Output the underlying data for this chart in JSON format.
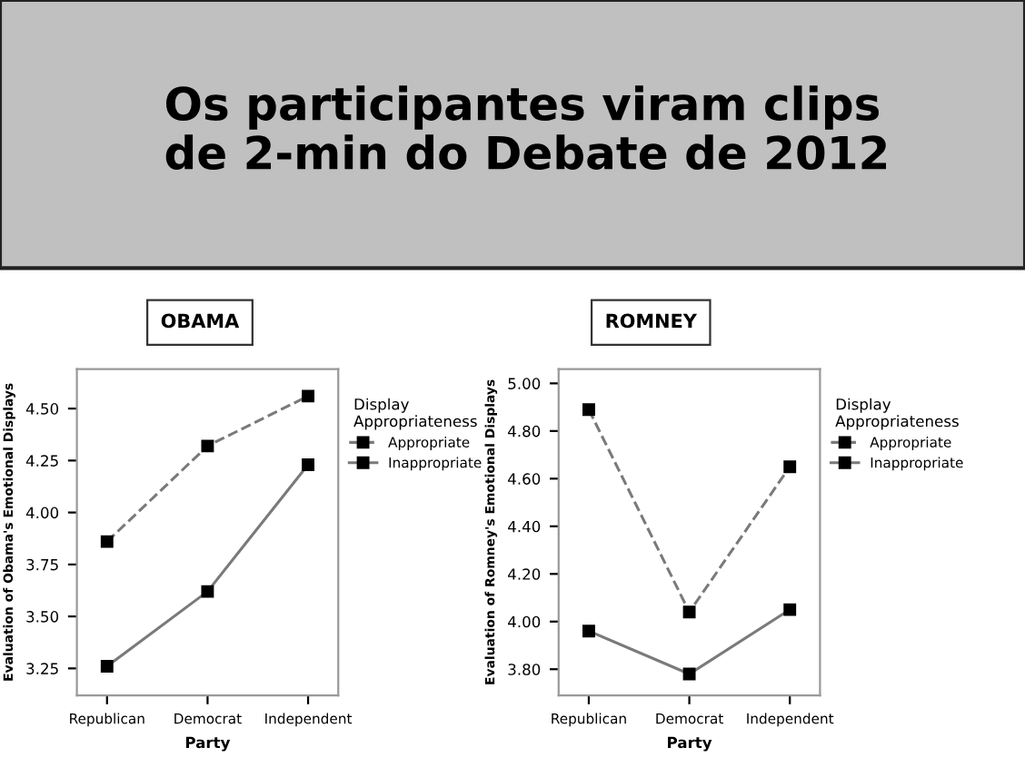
{
  "chart_data": [
    {
      "type": "line",
      "title": "OBAMA",
      "annotations": [
        "Os participantes viram clips\nde 2-min do Debate de 2012"
      ],
      "xlabel": "Party",
      "ylabel": "Evaluation of Obama's Emotional Displays",
      "legend_title": "Display\nAppropriateness",
      "categories": [
        "Republican",
        "Democrat",
        "Independent"
      ],
      "series": [
        {
          "name": "Appropriate",
          "color": "#7a7a7a",
          "line_style": "dashed",
          "values": [
            3.86,
            4.32,
            4.56
          ]
        },
        {
          "name": "Inappropriate",
          "color": "#7a7a7a",
          "line_style": "solid",
          "values": [
            3.26,
            3.62,
            4.23
          ]
        }
      ],
      "ylim": [
        3.12,
        4.69
      ],
      "yticks": [
        {
          "value": 3.25,
          "label": "3.25"
        },
        {
          "value": 3.5,
          "label": "3.50"
        },
        {
          "value": 3.75,
          "label": "3.75"
        },
        {
          "value": 4.0,
          "label": "4.00"
        },
        {
          "value": 4.25,
          "label": "4.25"
        },
        {
          "value": 4.5,
          "label": "4.50"
        }
      ],
      "marker": "square",
      "legend": "right",
      "grid": false
    },
    {
      "type": "line",
      "title": "ROMNEY",
      "xlabel": "Party",
      "ylabel": "Evaluation of Romney's Emotional Displays",
      "legend_title": "Display\nAppropriateness",
      "categories": [
        "Republican",
        "Democrat",
        "Independent"
      ],
      "series": [
        {
          "name": "Appropriate",
          "color": "#7a7a7a",
          "line_style": "dashed",
          "values": [
            4.89,
            4.04,
            4.65
          ]
        },
        {
          "name": "Inappropriate",
          "color": "#7a7a7a",
          "line_style": "solid",
          "values": [
            3.96,
            3.78,
            4.05
          ]
        }
      ],
      "ylim": [
        3.69,
        5.06
      ],
      "yticks": [
        {
          "value": 3.8,
          "label": "3.80"
        },
        {
          "value": 4.0,
          "label": "4.00"
        },
        {
          "value": 4.2,
          "label": "4.20"
        },
        {
          "value": 4.4,
          "label": "4.40"
        },
        {
          "value": 4.6,
          "label": "4.60"
        },
        {
          "value": 4.8,
          "label": "4.80"
        },
        {
          "value": 5.0,
          "label": "5.00"
        }
      ],
      "marker": "square",
      "legend": "right",
      "grid": false
    }
  ]
}
